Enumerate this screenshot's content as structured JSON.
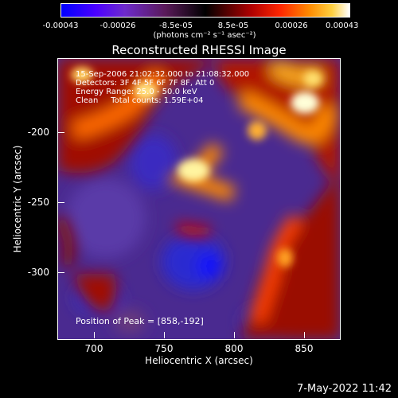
{
  "colorbar": {
    "ticks": [
      "-0.00043",
      "-0.00026",
      "-8.5e-05",
      "8.5e-05",
      "0.00026",
      "0.00043"
    ],
    "units": "(photons cm⁻² s⁻¹ asec⁻²)"
  },
  "plot": {
    "title": "Reconstructed RHESSI Image",
    "info_lines": [
      "15-Sep-2006 21:02:32.000 to 21:08:32.000",
      "Detectors: 3F 4F 5F 6F 7F 8F, Att 0",
      "Energy Range: 25.0 - 50.0 keV",
      "Clean     Total counts: 1.59E+04"
    ],
    "peak_text": "Position of Peak = [858,-192]",
    "xlabel": "Heliocentric X (arcsec)",
    "ylabel": "Heliocentric Y (arcsec)",
    "xticks": [
      "700",
      "750",
      "800",
      "850"
    ],
    "yticks": [
      "-200",
      "-250",
      "-300"
    ]
  },
  "footer": {
    "timestamp": "7-May-2022 11:42"
  },
  "colors": {
    "background": "#000000",
    "foreground": "#ffffff"
  }
}
